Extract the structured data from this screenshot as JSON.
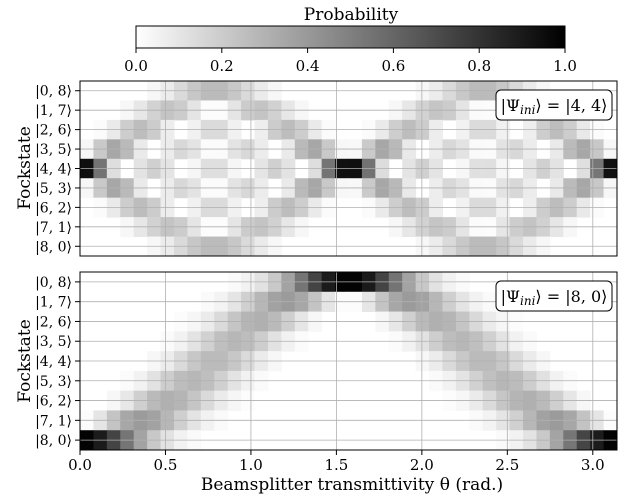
{
  "colorbar": {
    "label": "Probability",
    "ticks": [
      "0.0",
      "0.2",
      "0.4",
      "0.6",
      "0.8",
      "1.0"
    ],
    "range": [
      0,
      1
    ],
    "colormap": "Greys",
    "color_low": "#ffffff",
    "color_high": "#000000"
  },
  "chart_data": [
    {
      "type": "heatmap",
      "panel": "top",
      "annotation": "|Ψ_ini⟩ = |4, 4⟩",
      "annotation_main": "|Ψ",
      "annotation_sub": "ini",
      "annotation_rest": "⟩ = |4, 4⟩",
      "ylabel": "Fockstate",
      "xlabel": "",
      "y_categories": [
        "|0, 8⟩",
        "|1, 7⟩",
        "|2, 6⟩",
        "|3, 5⟩",
        "|4, 4⟩",
        "|5, 3⟩",
        "|6, 2⟩",
        "|7, 1⟩",
        "|8, 0⟩"
      ],
      "xlim": [
        0,
        3.1416
      ],
      "x_step": 0.0785,
      "grid": true,
      "initial_n1": 4,
      "total_photons": 8
    },
    {
      "type": "heatmap",
      "panel": "bottom",
      "annotation": "|Ψ_ini⟩ = |8, 0⟩",
      "annotation_main": "|Ψ",
      "annotation_sub": "ini",
      "annotation_rest": "⟩ = |8, 0⟩",
      "ylabel": "Fockstate",
      "xlabel": "Beamsplitter transmittivity θ (rad.)",
      "y_categories": [
        "|0, 8⟩",
        "|1, 7⟩",
        "|2, 6⟩",
        "|3, 5⟩",
        "|4, 4⟩",
        "|5, 3⟩",
        "|6, 2⟩",
        "|7, 1⟩",
        "|8, 0⟩"
      ],
      "x_ticks": [
        "0.0",
        "0.5",
        "1.0",
        "1.5",
        "2.0",
        "2.5",
        "3.0"
      ],
      "xlim": [
        0,
        3.1416
      ],
      "x_step": 0.0785,
      "grid": true,
      "initial_n1": 8,
      "total_photons": 8
    }
  ]
}
